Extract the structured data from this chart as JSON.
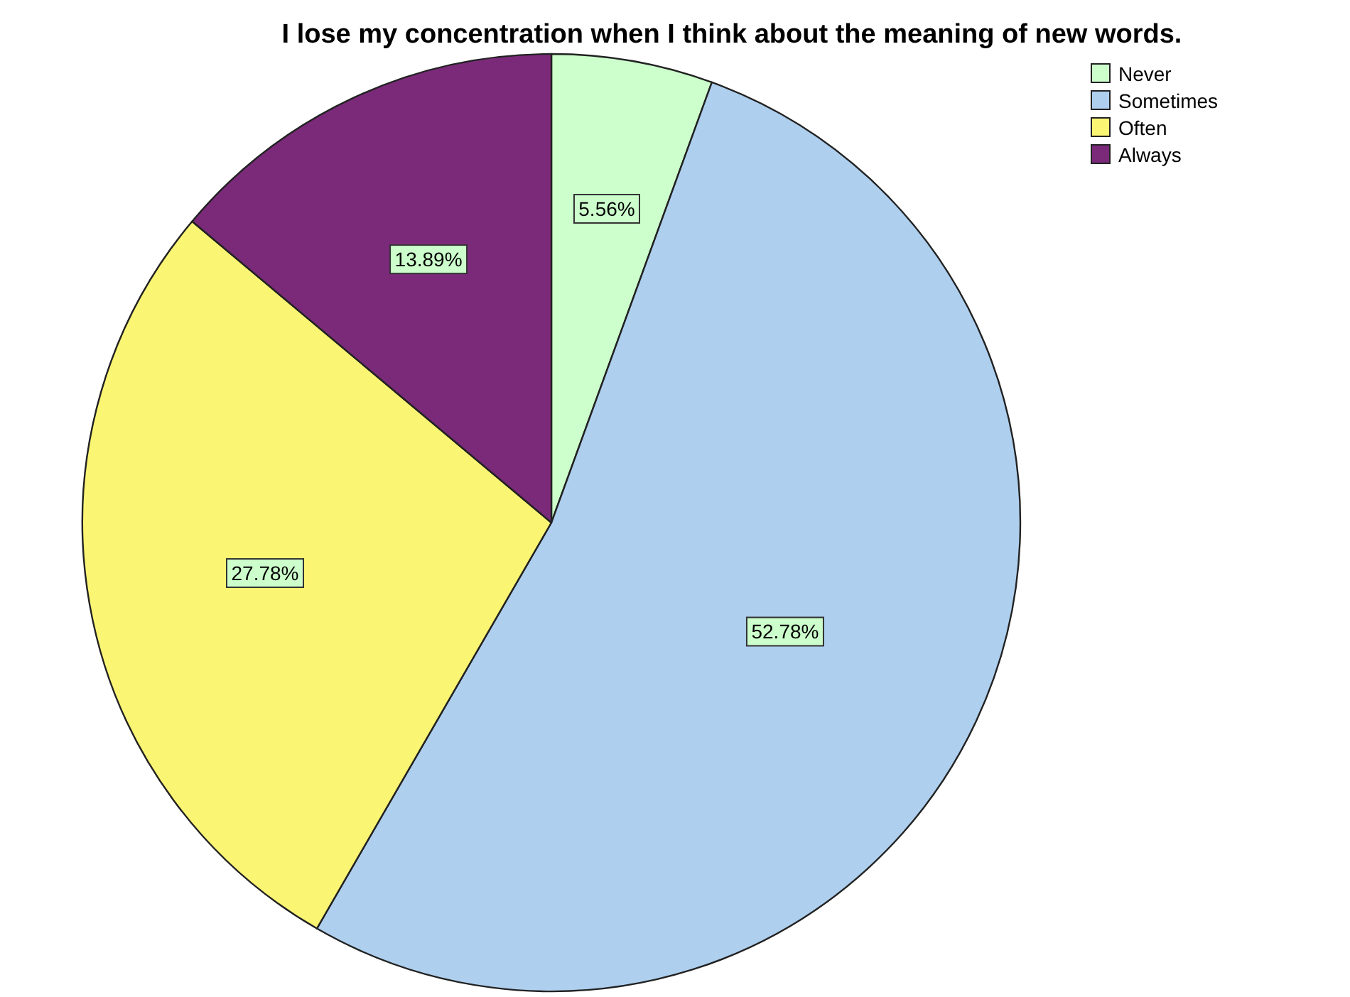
{
  "chart_data": {
    "type": "pie",
    "title": "I lose my concentration when I think about the meaning of new words.",
    "categories": [
      "Never",
      "Sometimes",
      "Often",
      "Always"
    ],
    "values": [
      5.56,
      52.78,
      27.78,
      13.89
    ],
    "value_labels": [
      "5.56%",
      "52.78%",
      "27.78%",
      "13.89%"
    ],
    "colors": [
      "#ccffcc",
      "#aecfee",
      "#fbf574",
      "#7b2a7a"
    ],
    "legend": "top right"
  }
}
